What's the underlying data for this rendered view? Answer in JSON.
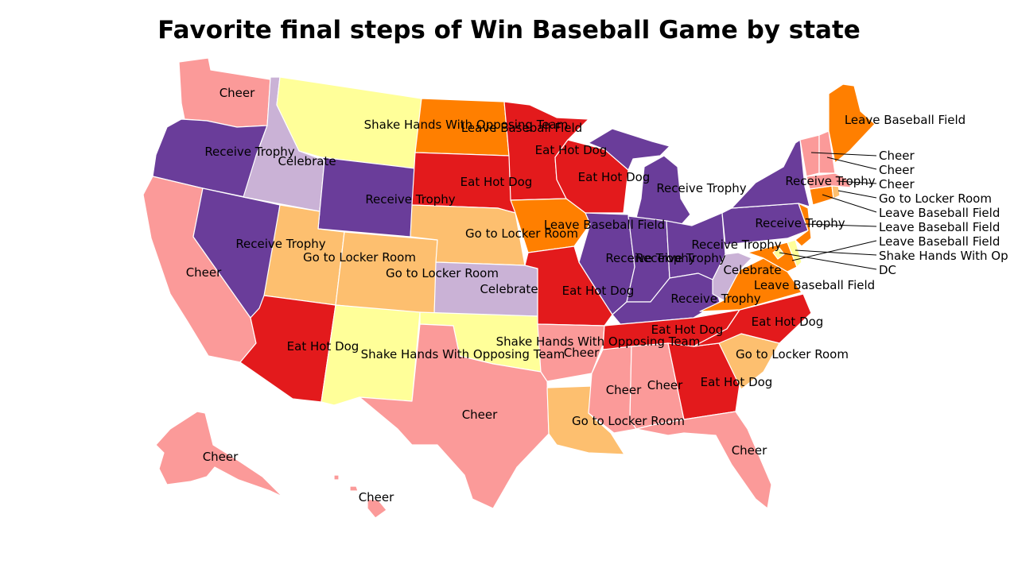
{
  "title": "Favorite final steps of Win Baseball Game by state",
  "categories": {
    "cheer": {
      "label": "Cheer",
      "color": "#fb9a99"
    },
    "trophy": {
      "label": "Receive Trophy",
      "color": "#6a3d9a"
    },
    "celeb": {
      "label": "Celebrate",
      "color": "#cab2d6"
    },
    "shake": {
      "label": "Shake Hands With Opposing Team",
      "color": "#ffff99"
    },
    "leave": {
      "label": "Leave Baseball Field",
      "color": "#ff7f00"
    },
    "hotdog": {
      "label": "Eat Hot Dog",
      "color": "#e31a1c"
    },
    "locker": {
      "label": "Go to Locker Room",
      "color": "#fdbf6f"
    }
  },
  "labels": {
    "WA": "Cheer",
    "OR": "Receive Trophy",
    "ID": "Celebrate",
    "MT": "Shake Hands With Opposing Team",
    "ND": "Leave Baseball Field",
    "MN": "Eat Hot Dog",
    "WI": "Eat Hot Dog",
    "MI": "Receive Trophy",
    "SD": "Eat Hot Dog",
    "WY": "Receive Trophy",
    "NE": "Go to Locker Room",
    "IA": "Leave Baseball Field",
    "NV": "Receive Trophy",
    "UT": "Go to Locker Room",
    "CO": "Go to Locker Room",
    "KS": "Celebrate",
    "MO": "Eat Hot Dog",
    "IL": "Receive Trophy",
    "IN": "Receive Trophy",
    "OH": "Receive Trophy",
    "KY": "Receive Trophy",
    "WV": "Celebrate",
    "VA": "Leave Baseball Field",
    "PA": "Receive Trophy",
    "NY": "Receive Trophy",
    "ME": "Leave Baseball Field",
    "CA": "Cheer",
    "AZ": "Eat Hot Dog",
    "NM": "Shake Hands With Opposing Team",
    "OK": "Shake Hands With Opposing Team",
    "TX": "Cheer",
    "AR": "Cheer",
    "LA": "Go to Locker Room",
    "MS": "Cheer",
    "AL": "Cheer",
    "TN": "Eat Hot Dog",
    "GA": "Eat Hot Dog",
    "SC": "Go to Locker Room",
    "NC": "Eat Hot Dog",
    "FL": "Cheer",
    "AK": "Cheer",
    "HI": "Cheer"
  },
  "callouts": [
    "Cheer",
    "Cheer",
    "Cheer",
    "Go to Locker Room",
    "Leave Baseball Field",
    "Leave Baseball Field",
    "Leave Baseball Field",
    "Shake Hands With Op",
    "DC"
  ]
}
